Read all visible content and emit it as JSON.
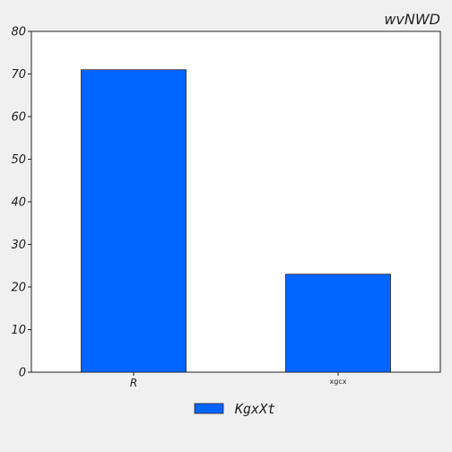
{
  "chart_data": {
    "type": "bar",
    "title": "wvNWD",
    "categories": [
      "R",
      "xgcx"
    ],
    "series": [
      {
        "name": "KgxXt",
        "values": [
          71,
          23
        ],
        "color": "#0066ff"
      }
    ],
    "ylim": [
      0,
      80
    ],
    "yticks": [
      0,
      10,
      20,
      30,
      40,
      50,
      60,
      70,
      80
    ],
    "grid": false,
    "legend_position": "bottom-center"
  }
}
